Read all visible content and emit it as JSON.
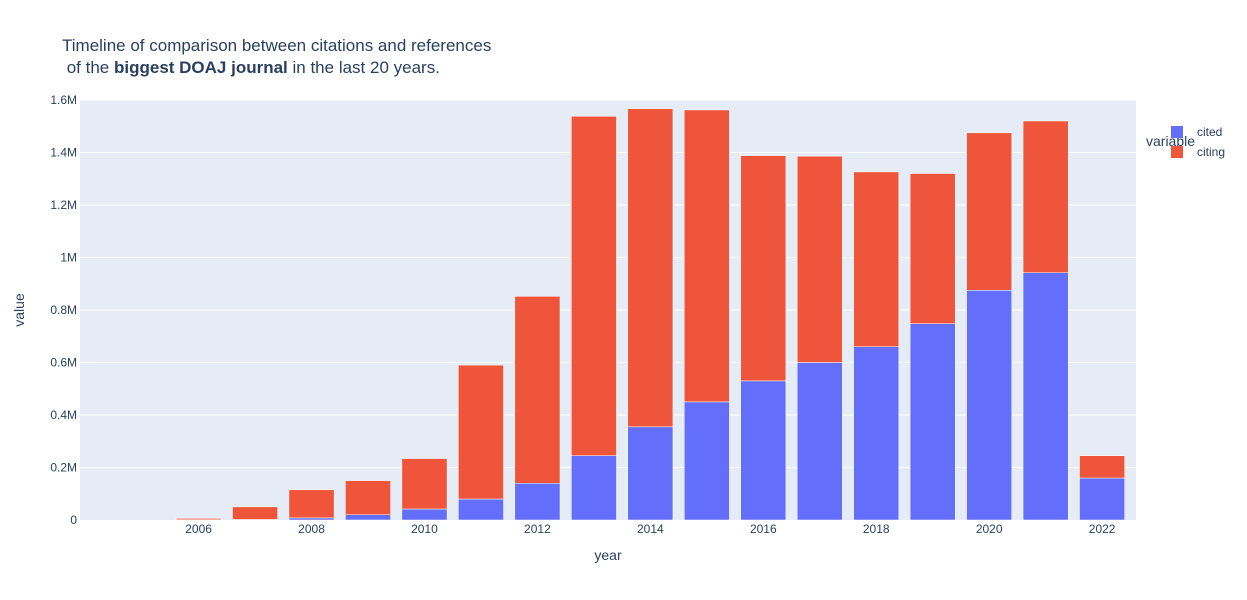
{
  "chart_data": {
    "type": "bar",
    "barmode": "stack",
    "title": {
      "line1": "Timeline of comparison between citations and references",
      "line2_prefix": " of the ",
      "line2_bold": "biggest DOAJ journal",
      "line2_suffix": " in the last 20 years."
    },
    "xlabel": "year",
    "ylabel": "value",
    "legend_title": "variable",
    "legend_position": "top-right",
    "grid": true,
    "x": [
      2005,
      2006,
      2007,
      2008,
      2009,
      2010,
      2011,
      2012,
      2013,
      2014,
      2015,
      2016,
      2017,
      2018,
      2019,
      2020,
      2021,
      2022
    ],
    "xlim": [
      2003.9,
      2022.6
    ],
    "x_ticks": [
      2006,
      2008,
      2010,
      2012,
      2014,
      2016,
      2018,
      2020,
      2022
    ],
    "x_tick_labels": [
      "2006",
      "2008",
      "2010",
      "2012",
      "2014",
      "2016",
      "2018",
      "2020",
      "2022"
    ],
    "ylim": [
      0,
      1600000
    ],
    "y_ticks": [
      0,
      200000,
      400000,
      600000,
      800000,
      1000000,
      1200000,
      1400000,
      1600000
    ],
    "y_tick_labels": [
      "0",
      "0.2M",
      "0.4M",
      "0.6M",
      "0.8M",
      "1M",
      "1.2M",
      "1.4M",
      "1.6M"
    ],
    "series": [
      {
        "name": "cited",
        "color": "#636efa",
        "values": [
          0,
          1000,
          2000,
          8000,
          20000,
          42000,
          80000,
          140000,
          245000,
          355000,
          450000,
          530000,
          600000,
          660000,
          748000,
          875000,
          942000,
          160000
        ]
      },
      {
        "name": "citing",
        "color": "#ef553b",
        "values": [
          0,
          5000,
          48000,
          107000,
          130000,
          192000,
          510000,
          712000,
          1293000,
          1212000,
          1112000,
          858000,
          786000,
          666000,
          572000,
          600000,
          578000,
          85000
        ]
      }
    ],
    "colors": {
      "plot_background": "#e5ecf6",
      "gridline": "#ffffff",
      "text": "#2a3f5f"
    }
  }
}
